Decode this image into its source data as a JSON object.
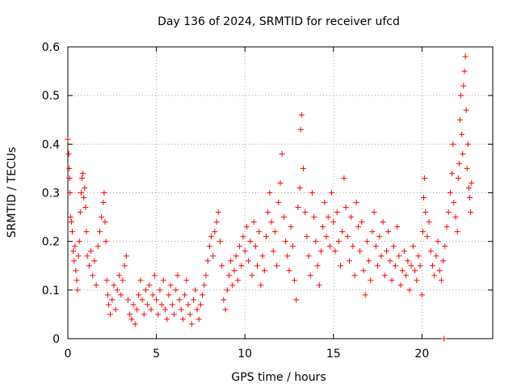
{
  "chart_data": {
    "type": "scatter",
    "title": "Day 136 of 2024, SRMTID for receiver ufcd",
    "xlabel": "GPS time / hours",
    "ylabel": "SRMTID / TECUs",
    "xlim": [
      0,
      24
    ],
    "ylim": [
      0,
      0.6
    ],
    "xticks": [
      0,
      5,
      10,
      15,
      20
    ],
    "yticks": [
      0,
      0.1,
      0.2,
      0.3,
      0.4,
      0.5,
      0.6
    ],
    "grid": true,
    "marker": "+",
    "color": "#ff0000",
    "series": [
      {
        "name": "SRMTID",
        "points": [
          [
            0.0,
            0.41
          ],
          [
            0.05,
            0.38
          ],
          [
            0.08,
            0.35
          ],
          [
            0.1,
            0.33
          ],
          [
            0.12,
            0.3
          ],
          [
            0.15,
            0.25
          ],
          [
            0.2,
            0.24
          ],
          [
            0.25,
            0.22
          ],
          [
            0.3,
            0.18
          ],
          [
            0.35,
            0.16
          ],
          [
            0.4,
            0.19
          ],
          [
            0.45,
            0.14
          ],
          [
            0.5,
            0.12
          ],
          [
            0.55,
            0.1
          ],
          [
            0.6,
            0.17
          ],
          [
            0.65,
            0.2
          ],
          [
            0.7,
            0.26
          ],
          [
            0.75,
            0.3
          ],
          [
            0.8,
            0.33
          ],
          [
            0.85,
            0.34
          ],
          [
            0.9,
            0.29
          ],
          [
            0.95,
            0.31
          ],
          [
            1.0,
            0.27
          ],
          [
            1.05,
            0.22
          ],
          [
            1.1,
            0.17
          ],
          [
            1.2,
            0.15
          ],
          [
            1.3,
            0.18
          ],
          [
            1.4,
            0.13
          ],
          [
            1.5,
            0.16
          ],
          [
            1.6,
            0.11
          ],
          [
            1.7,
            0.19
          ],
          [
            1.8,
            0.22
          ],
          [
            1.9,
            0.25
          ],
          [
            2.0,
            0.28
          ],
          [
            2.05,
            0.3
          ],
          [
            2.1,
            0.24
          ],
          [
            2.15,
            0.2
          ],
          [
            2.2,
            0.12
          ],
          [
            2.25,
            0.09
          ],
          [
            2.3,
            0.07
          ],
          [
            2.4,
            0.05
          ],
          [
            2.5,
            0.08
          ],
          [
            2.6,
            0.11
          ],
          [
            2.7,
            0.06
          ],
          [
            2.8,
            0.1
          ],
          [
            2.9,
            0.13
          ],
          [
            3.0,
            0.09
          ],
          [
            3.1,
            0.12
          ],
          [
            3.2,
            0.15
          ],
          [
            3.3,
            0.17
          ],
          [
            3.4,
            0.08
          ],
          [
            3.5,
            0.05
          ],
          [
            3.6,
            0.04
          ],
          [
            3.7,
            0.07
          ],
          [
            3.8,
            0.03
          ],
          [
            3.9,
            0.06
          ],
          [
            4.0,
            0.09
          ],
          [
            4.1,
            0.12
          ],
          [
            4.2,
            0.08
          ],
          [
            4.3,
            0.05
          ],
          [
            4.4,
            0.1
          ],
          [
            4.5,
            0.07
          ],
          [
            4.6,
            0.11
          ],
          [
            4.7,
            0.06
          ],
          [
            4.8,
            0.09
          ],
          [
            4.9,
            0.13
          ],
          [
            5.0,
            0.08
          ],
          [
            5.1,
            0.05
          ],
          [
            5.2,
            0.1
          ],
          [
            5.3,
            0.07
          ],
          [
            5.4,
            0.12
          ],
          [
            5.5,
            0.06
          ],
          [
            5.6,
            0.04
          ],
          [
            5.7,
            0.09
          ],
          [
            5.8,
            0.11
          ],
          [
            5.9,
            0.07
          ],
          [
            6.0,
            0.05
          ],
          [
            6.1,
            0.1
          ],
          [
            6.2,
            0.13
          ],
          [
            6.3,
            0.08
          ],
          [
            6.4,
            0.06
          ],
          [
            6.5,
            0.04
          ],
          [
            6.6,
            0.09
          ],
          [
            6.7,
            0.12
          ],
          [
            6.8,
            0.07
          ],
          [
            6.9,
            0.05
          ],
          [
            7.0,
            0.03
          ],
          [
            7.1,
            0.08
          ],
          [
            7.2,
            0.1
          ],
          [
            7.3,
            0.06
          ],
          [
            7.4,
            0.04
          ],
          [
            7.5,
            0.07
          ],
          [
            7.6,
            0.09
          ],
          [
            7.7,
            0.11
          ],
          [
            7.8,
            0.13
          ],
          [
            7.9,
            0.16
          ],
          [
            8.0,
            0.19
          ],
          [
            8.1,
            0.21
          ],
          [
            8.2,
            0.17
          ],
          [
            8.3,
            0.22
          ],
          [
            8.4,
            0.24
          ],
          [
            8.5,
            0.26
          ],
          [
            8.6,
            0.2
          ],
          [
            8.7,
            0.15
          ],
          [
            8.8,
            0.08
          ],
          [
            8.9,
            0.06
          ],
          [
            9.0,
            0.1
          ],
          [
            9.1,
            0.13
          ],
          [
            9.2,
            0.16
          ],
          [
            9.3,
            0.11
          ],
          [
            9.4,
            0.14
          ],
          [
            9.5,
            0.17
          ],
          [
            9.6,
            0.12
          ],
          [
            9.7,
            0.19
          ],
          [
            9.8,
            0.15
          ],
          [
            9.9,
            0.21
          ],
          [
            10.0,
            0.18
          ],
          [
            10.1,
            0.23
          ],
          [
            10.2,
            0.16
          ],
          [
            10.3,
            0.2
          ],
          [
            10.4,
            0.13
          ],
          [
            10.5,
            0.24
          ],
          [
            10.6,
            0.19
          ],
          [
            10.7,
            0.15
          ],
          [
            10.8,
            0.22
          ],
          [
            10.9,
            0.11
          ],
          [
            11.0,
            0.17
          ],
          [
            11.1,
            0.14
          ],
          [
            11.2,
            0.21
          ],
          [
            11.3,
            0.26
          ],
          [
            11.4,
            0.3
          ],
          [
            11.5,
            0.24
          ],
          [
            11.6,
            0.18
          ],
          [
            11.7,
            0.22
          ],
          [
            11.8,
            0.15
          ],
          [
            11.9,
            0.28
          ],
          [
            12.0,
            0.32
          ],
          [
            12.1,
            0.38
          ],
          [
            12.2,
            0.25
          ],
          [
            12.3,
            0.2
          ],
          [
            12.4,
            0.17
          ],
          [
            12.5,
            0.14
          ],
          [
            12.6,
            0.23
          ],
          [
            12.7,
            0.19
          ],
          [
            12.8,
            0.12
          ],
          [
            12.9,
            0.08
          ],
          [
            13.0,
            0.27
          ],
          [
            13.1,
            0.31
          ],
          [
            13.15,
            0.43
          ],
          [
            13.2,
            0.46
          ],
          [
            13.3,
            0.35
          ],
          [
            13.4,
            0.26
          ],
          [
            13.5,
            0.21
          ],
          [
            13.6,
            0.17
          ],
          [
            13.7,
            0.13
          ],
          [
            13.8,
            0.3
          ],
          [
            13.9,
            0.25
          ],
          [
            14.0,
            0.2
          ],
          [
            14.1,
            0.15
          ],
          [
            14.2,
            0.11
          ],
          [
            14.3,
            0.18
          ],
          [
            14.4,
            0.23
          ],
          [
            14.5,
            0.28
          ],
          [
            14.6,
            0.21
          ],
          [
            14.7,
            0.25
          ],
          [
            14.8,
            0.19
          ],
          [
            14.9,
            0.3
          ],
          [
            15.0,
            0.24
          ],
          [
            15.1,
            0.18
          ],
          [
            15.2,
            0.26
          ],
          [
            15.3,
            0.2
          ],
          [
            15.4,
            0.15
          ],
          [
            15.5,
            0.22
          ],
          [
            15.6,
            0.33
          ],
          [
            15.7,
            0.27
          ],
          [
            15.8,
            0.21
          ],
          [
            15.9,
            0.16
          ],
          [
            16.0,
            0.25
          ],
          [
            16.1,
            0.19
          ],
          [
            16.2,
            0.13
          ],
          [
            16.3,
            0.28
          ],
          [
            16.4,
            0.23
          ],
          [
            16.5,
            0.18
          ],
          [
            16.6,
            0.24
          ],
          [
            16.7,
            0.14
          ],
          [
            16.8,
            0.09
          ],
          [
            16.9,
            0.2
          ],
          [
            17.0,
            0.16
          ],
          [
            17.1,
            0.12
          ],
          [
            17.2,
            0.22
          ],
          [
            17.3,
            0.26
          ],
          [
            17.4,
            0.19
          ],
          [
            17.5,
            0.15
          ],
          [
            17.6,
            0.21
          ],
          [
            17.7,
            0.17
          ],
          [
            17.8,
            0.24
          ],
          [
            17.9,
            0.13
          ],
          [
            18.0,
            0.18
          ],
          [
            18.1,
            0.22
          ],
          [
            18.2,
            0.16
          ],
          [
            18.3,
            0.12
          ],
          [
            18.4,
            0.19
          ],
          [
            18.5,
            0.15
          ],
          [
            18.6,
            0.23
          ],
          [
            18.7,
            0.17
          ],
          [
            18.8,
            0.11
          ],
          [
            18.9,
            0.14
          ],
          [
            19.0,
            0.18
          ],
          [
            19.1,
            0.13
          ],
          [
            19.2,
            0.16
          ],
          [
            19.3,
            0.1
          ],
          [
            19.4,
            0.15
          ],
          [
            19.5,
            0.19
          ],
          [
            19.6,
            0.14
          ],
          [
            19.7,
            0.12
          ],
          [
            19.8,
            0.17
          ],
          [
            19.9,
            0.15
          ],
          [
            20.0,
            0.09
          ],
          [
            20.05,
            0.22
          ],
          [
            20.1,
            0.29
          ],
          [
            20.15,
            0.33
          ],
          [
            20.2,
            0.26
          ],
          [
            20.3,
            0.21
          ],
          [
            20.4,
            0.24
          ],
          [
            20.5,
            0.18
          ],
          [
            20.6,
            0.15
          ],
          [
            20.7,
            0.13
          ],
          [
            20.8,
            0.17
          ],
          [
            20.9,
            0.2
          ],
          [
            21.0,
            0.14
          ],
          [
            21.1,
            0.12
          ],
          [
            21.2,
            0.16
          ],
          [
            21.25,
            0.0
          ],
          [
            21.3,
            0.19
          ],
          [
            21.4,
            0.23
          ],
          [
            21.5,
            0.26
          ],
          [
            21.6,
            0.3
          ],
          [
            21.7,
            0.34
          ],
          [
            21.75,
            0.4
          ],
          [
            21.8,
            0.28
          ],
          [
            21.9,
            0.25
          ],
          [
            22.0,
            0.22
          ],
          [
            22.05,
            0.33
          ],
          [
            22.1,
            0.36
          ],
          [
            22.15,
            0.45
          ],
          [
            22.2,
            0.5
          ],
          [
            22.25,
            0.42
          ],
          [
            22.3,
            0.38
          ],
          [
            22.35,
            0.52
          ],
          [
            22.4,
            0.55
          ],
          [
            22.45,
            0.58
          ],
          [
            22.5,
            0.47
          ],
          [
            22.55,
            0.35
          ],
          [
            22.6,
            0.4
          ],
          [
            22.65,
            0.31
          ],
          [
            22.7,
            0.29
          ],
          [
            22.75,
            0.26
          ],
          [
            22.8,
            0.32
          ]
        ]
      }
    ]
  }
}
